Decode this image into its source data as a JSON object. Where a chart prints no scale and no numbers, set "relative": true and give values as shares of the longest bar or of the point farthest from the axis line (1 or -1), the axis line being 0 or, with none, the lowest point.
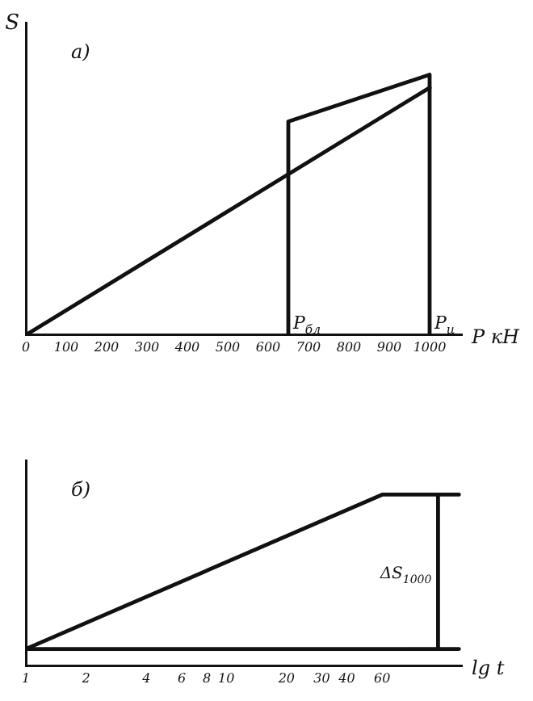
{
  "chart_data": [
    {
      "type": "line",
      "title": "а)",
      "ylabel": "S",
      "xlabel": "P кН",
      "relative": true,
      "xlim": [
        0,
        1080
      ],
      "xticks": [
        0,
        100,
        200,
        300,
        400,
        500,
        600,
        700,
        800,
        900,
        1000
      ],
      "tick_labels": "x",
      "legend": false,
      "grid": false,
      "marker": "none",
      "line_style": "solid",
      "series": [
        {
          "color": "#111111",
          "x": [
            0,
            1000
          ],
          "values": [
            0,
            0.95
          ]
        },
        {
          "color": "#111111",
          "x": [
            650,
            650,
            1000,
            1000
          ],
          "values": [
            0,
            0.82,
            1,
            0
          ]
        }
      ],
      "annotations": [
        {
          "text": "P$_{бл}$",
          "x": 650,
          "y": 0
        },
        {
          "text": "P$_{ц}$",
          "x": 1000,
          "y": 0
        }
      ]
    },
    {
      "type": "line",
      "title": "б)",
      "xlabel": "lg t",
      "relative": true,
      "log": "x",
      "xlim": [
        1,
        150
      ],
      "xticks": [
        1,
        2,
        4,
        6,
        8,
        10,
        20,
        30,
        40,
        60
      ],
      "tick_labels": "x",
      "legend": false,
      "grid": false,
      "marker": "none",
      "line_style": "solid",
      "series": [
        {
          "color": "#111111",
          "x": [
            1,
            60,
            145
          ],
          "values": [
            0.1,
            1,
            1
          ]
        },
        {
          "color": "#111111",
          "x": [
            1,
            145
          ],
          "values": [
            0.1,
            0.1
          ]
        },
        {
          "color": "#111111",
          "x": [
            114,
            114
          ],
          "values": [
            0.1,
            1
          ]
        }
      ],
      "annotations": [
        {
          "text": "ΔS$_{1000}$",
          "x": 114,
          "y": 0.55
        }
      ]
    }
  ]
}
